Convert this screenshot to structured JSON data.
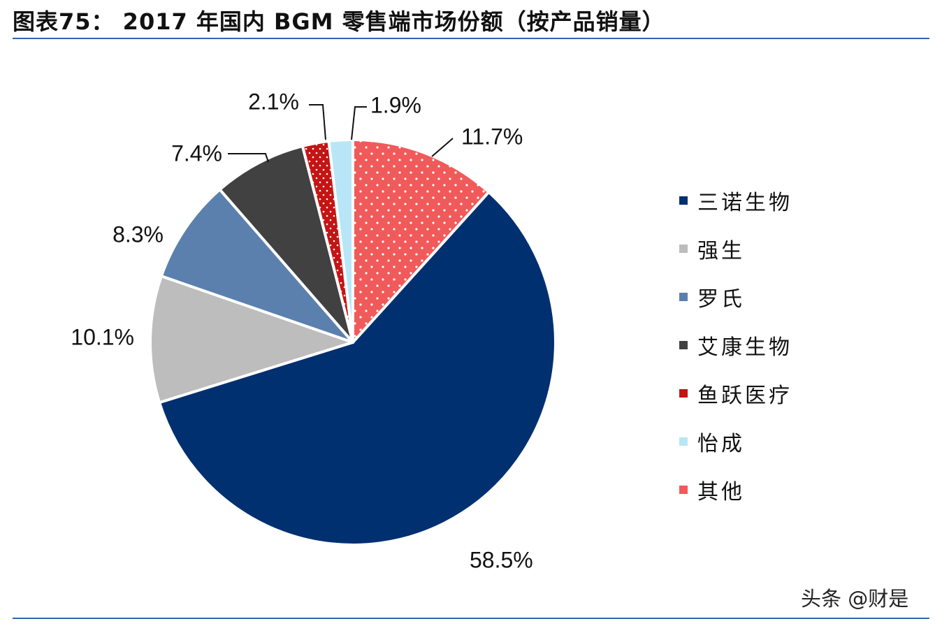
{
  "header": {
    "title": "图表75：  2017 年国内 BGM 零售端市场份额（按产品销量）"
  },
  "watermark": "头条 @财是",
  "chart_data": {
    "type": "pie",
    "title": "图表75：  2017 年国内 BGM 零售端市场份额（按产品销量）",
    "legend_position": "right",
    "start_angle_deg": 0,
    "direction": "clockwise",
    "slices": [
      {
        "name": "其他",
        "value": 11.7,
        "label": "11.7%",
        "color": "#f05a5a",
        "pattern": "dots"
      },
      {
        "name": "三诺生物",
        "value": 58.5,
        "label": "58.5%",
        "color": "#003070",
        "pattern": "none"
      },
      {
        "name": "强生",
        "value": 10.1,
        "label": "10.1%",
        "color": "#bdbdbd",
        "pattern": "none"
      },
      {
        "name": "罗氏",
        "value": 8.3,
        "label": "8.3%",
        "color": "#5b80ae",
        "pattern": "none"
      },
      {
        "name": "艾康生物",
        "value": 7.4,
        "label": "7.4%",
        "color": "#414141",
        "pattern": "none"
      },
      {
        "name": "鱼跃医疗",
        "value": 2.1,
        "label": "2.1%",
        "color": "#c41414",
        "pattern": "dots"
      },
      {
        "name": "怡成",
        "value": 1.9,
        "label": "1.9%",
        "color": "#b9e6f6",
        "pattern": "none"
      }
    ],
    "legend": [
      {
        "name": "三诺生物",
        "color": "#003070"
      },
      {
        "name": "强生",
        "color": "#bdbdbd"
      },
      {
        "name": "罗氏",
        "color": "#5b80ae"
      },
      {
        "name": "艾康生物",
        "color": "#414141"
      },
      {
        "name": "鱼跃医疗",
        "color": "#c41414"
      },
      {
        "name": "怡成",
        "color": "#b9e6f6"
      },
      {
        "name": "其他",
        "color": "#f05a5a"
      }
    ]
  }
}
